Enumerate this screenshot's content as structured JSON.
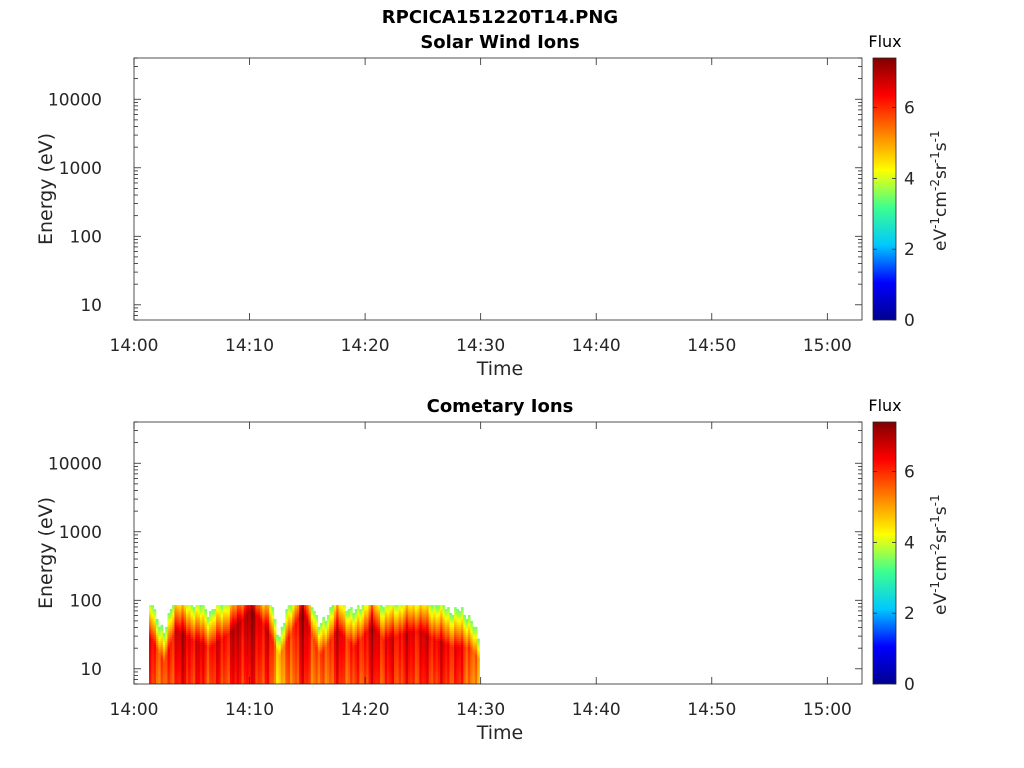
{
  "figure_title": "RPCICA151220T14.PNG",
  "colormap_stops": [
    "#00008f",
    "#0000ff",
    "#00c8ff",
    "#3cff90",
    "#ffff00",
    "#ff8000",
    "#ff0000",
    "#800000"
  ],
  "chart_data": [
    {
      "type": "heatmap",
      "title": "Solar Wind Ions",
      "xlabel": "Time",
      "ylabel": "Energy (eV)",
      "x_ticks": [
        "14:00",
        "14:10",
        "14:20",
        "14:30",
        "14:40",
        "14:50",
        "15:00"
      ],
      "x_range": [
        "14:00",
        "15:03"
      ],
      "y_scale": "log",
      "y_ticks": [
        "10",
        "100",
        "1000",
        "10000"
      ],
      "y_range": [
        6,
        40000
      ],
      "colorbar": {
        "title": "Flux",
        "label": "eV-1cm-2sr-1s-1",
        "ticks": [
          "0",
          "2",
          "4",
          "6"
        ],
        "range": [
          0,
          7.4
        ]
      },
      "data": []
    },
    {
      "type": "heatmap",
      "title": "Cometary Ions",
      "xlabel": "Time",
      "ylabel": "Energy (eV)",
      "x_ticks": [
        "14:00",
        "14:10",
        "14:20",
        "14:30",
        "14:40",
        "14:50",
        "15:00"
      ],
      "x_range": [
        "14:00",
        "15:03"
      ],
      "y_scale": "log",
      "y_ticks": [
        "10",
        "100",
        "1000",
        "10000"
      ],
      "y_range": [
        6,
        40000
      ],
      "colorbar": {
        "title": "Flux",
        "label": "eV-1cm-2sr-1s-1",
        "ticks": [
          "0",
          "2",
          "4",
          "6"
        ],
        "range": [
          0,
          7.4
        ]
      },
      "data": [
        {
          "time": "14:01.5",
          "peak_energy": 25,
          "peak_flux": 6.5
        },
        {
          "time": "14:02.5",
          "peak_energy": 12,
          "peak_flux": 5.5
        },
        {
          "time": "14:03.5",
          "peak_energy": 35,
          "peak_flux": 6.8
        },
        {
          "time": "14:05.0",
          "peak_energy": 25,
          "peak_flux": 6.6
        },
        {
          "time": "14:06.5",
          "peak_energy": 20,
          "peak_flux": 6.3
        },
        {
          "time": "14:08.0",
          "peak_energy": 30,
          "peak_flux": 6.5
        },
        {
          "time": "14:09.0",
          "peak_energy": 45,
          "peak_flux": 6.9
        },
        {
          "time": "14:10.0",
          "peak_energy": 70,
          "peak_flux": 7.0
        },
        {
          "time": "14:11.5",
          "peak_energy": 35,
          "peak_flux": 6.5
        },
        {
          "time": "14:12.5",
          "peak_energy": 15,
          "peak_flux": 5.0
        },
        {
          "time": "14:14.5",
          "peak_energy": 70,
          "peak_flux": 7.0
        },
        {
          "time": "14:16.0",
          "peak_energy": 15,
          "peak_flux": 5.5
        },
        {
          "time": "14:17.5",
          "peak_energy": 35,
          "peak_flux": 6.6
        },
        {
          "time": "14:19.0",
          "peak_energy": 20,
          "peak_flux": 6.0
        },
        {
          "time": "14:20.5",
          "peak_energy": 40,
          "peak_flux": 6.8
        },
        {
          "time": "14:21.5",
          "peak_energy": 25,
          "peak_flux": 6.4
        },
        {
          "time": "14:23.0",
          "peak_energy": 30,
          "peak_flux": 6.5
        },
        {
          "time": "14:24.5",
          "peak_energy": 35,
          "peak_flux": 6.6
        },
        {
          "time": "14:26.0",
          "peak_energy": 25,
          "peak_flux": 6.5
        },
        {
          "time": "14:27.5",
          "peak_energy": 20,
          "peak_flux": 6.4
        },
        {
          "time": "14:29.0",
          "peak_energy": 20,
          "peak_flux": 6.0
        },
        {
          "time": "14:29.9",
          "peak_energy": 12,
          "peak_flux": 4.5
        }
      ]
    }
  ]
}
